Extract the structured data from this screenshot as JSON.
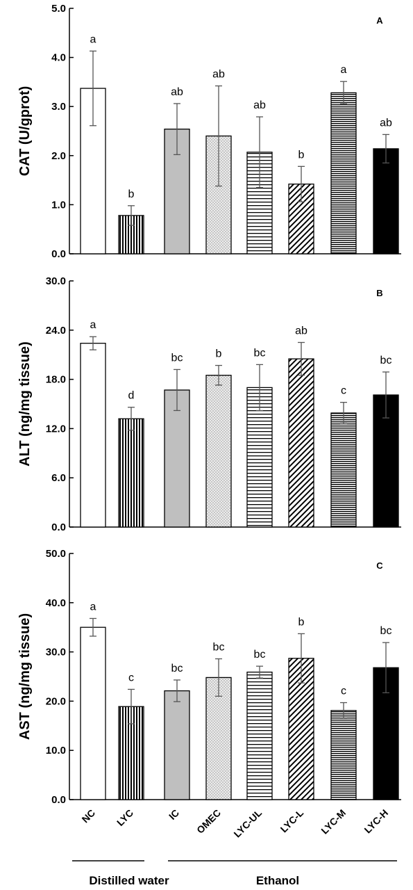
{
  "chart_data": [
    {
      "type": "bar",
      "panel": "A",
      "ylabel": "CAT (U/gprot)",
      "ylim": [
        0,
        5
      ],
      "yticks": [
        "0.0",
        "1.0",
        "2.0",
        "3.0",
        "4.0",
        "5.0"
      ],
      "categories": [
        "NC",
        "LYC",
        "IC",
        "OMEC",
        "LYC-UL",
        "LYC-L",
        "LYC-M",
        "LYC-H"
      ],
      "values": [
        3.37,
        0.78,
        2.54,
        2.4,
        2.07,
        1.42,
        3.28,
        2.14
      ],
      "errors": [
        0.76,
        0.2,
        0.52,
        1.02,
        0.72,
        0.36,
        0.23,
        0.29
      ],
      "letters": [
        "a",
        "b",
        "ab",
        "ab",
        "ab",
        "b",
        "a",
        "ab"
      ]
    },
    {
      "type": "bar",
      "panel": "B",
      "ylabel": "ALT (ng/mg tissue)",
      "ylim": [
        0,
        30
      ],
      "yticks": [
        "0.0",
        "6.0",
        "12.0",
        "18.0",
        "24.0",
        "30.0"
      ],
      "categories": [
        "NC",
        "LYC",
        "IC",
        "OMEC",
        "LYC-UL",
        "LYC-L",
        "LYC-M",
        "LYC-H"
      ],
      "values": [
        22.4,
        13.2,
        16.7,
        18.5,
        17.0,
        20.5,
        13.9,
        16.1
      ],
      "errors": [
        0.8,
        1.4,
        2.5,
        1.2,
        2.8,
        2.0,
        1.3,
        2.8
      ],
      "letters": [
        "a",
        "d",
        "bc",
        "b",
        "bc",
        "ab",
        "c",
        "bc"
      ]
    },
    {
      "type": "bar",
      "panel": "C",
      "ylabel": "AST (ng/mg tissue)",
      "ylim": [
        0,
        50
      ],
      "yticks": [
        "0.0",
        "10.0",
        "20.0",
        "30.0",
        "40.0",
        "50.0"
      ],
      "categories": [
        "NC",
        "LYC",
        "IC",
        "OMEC",
        "LYC-UL",
        "LYC-L",
        "LYC-M",
        "LYC-H"
      ],
      "values": [
        35.0,
        18.9,
        22.1,
        24.8,
        25.9,
        28.7,
        18.1,
        26.8
      ],
      "errors": [
        1.8,
        3.5,
        2.2,
        3.8,
        1.2,
        5.0,
        1.6,
        5.1
      ],
      "letters": [
        "a",
        "c",
        "bc",
        "bc",
        "bc",
        "b",
        "c",
        "bc"
      ]
    }
  ],
  "categories": [
    "NC",
    "LYC",
    "IC",
    "OMEC",
    "LYC-UL",
    "LYC-L",
    "LYC-M",
    "LYC-H"
  ],
  "groups": [
    {
      "label": "Distilled water",
      "members": [
        "NC",
        "LYC"
      ]
    },
    {
      "label": "Ethanol",
      "members": [
        "IC",
        "OMEC",
        "LYC-UL",
        "LYC-L",
        "LYC-M",
        "LYC-H"
      ]
    }
  ],
  "fills": [
    "white",
    "vertical-lines",
    "gray",
    "dots",
    "horizontal-lines",
    "diagonal-lines",
    "dense-horizontal-lines",
    "black"
  ],
  "colors": {
    "axis": "#000000",
    "bar_outline": "#000000",
    "gray_fill": "#bfbfbf",
    "black_fill": "#000000"
  }
}
